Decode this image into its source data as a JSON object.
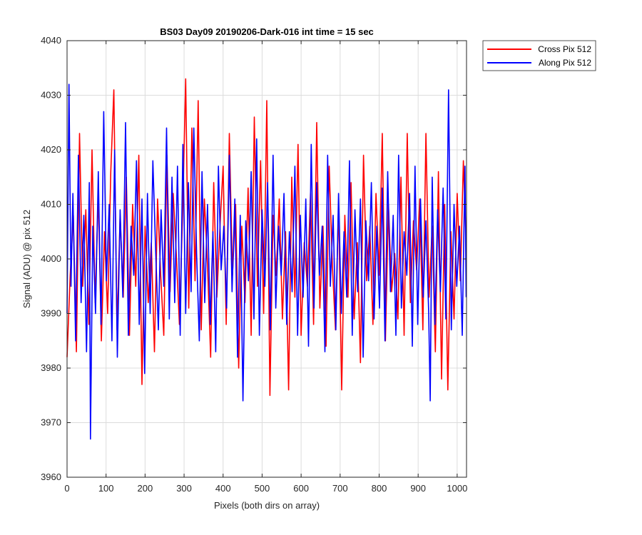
{
  "chart_data": {
    "type": "line",
    "title": "BS03 Day09 20190206-Dark-016 int time = 15 sec",
    "xlabel": "Pixels (both dirs on array)",
    "ylabel": "Signal (ADU) @ pix 512",
    "xlim": [
      0,
      1024
    ],
    "ylim": [
      3960,
      4040
    ],
    "xticks": [
      0,
      100,
      200,
      300,
      400,
      500,
      600,
      700,
      800,
      900,
      1000
    ],
    "yticks": [
      3960,
      3970,
      3980,
      3990,
      4000,
      4010,
      4020,
      4030,
      4040
    ],
    "grid": true,
    "legend_position": "outside-top-right",
    "series": [
      {
        "name": "Cross Pix 512",
        "color": "#ff0000",
        "x": [
          0,
          8,
          16,
          24,
          32,
          40,
          48,
          56,
          64,
          72,
          80,
          88,
          96,
          104,
          112,
          120,
          128,
          136,
          144,
          152,
          160,
          168,
          176,
          184,
          192,
          200,
          208,
          216,
          224,
          232,
          240,
          248,
          256,
          264,
          272,
          280,
          288,
          296,
          304,
          312,
          320,
          328,
          336,
          344,
          352,
          360,
          368,
          376,
          384,
          392,
          400,
          408,
          416,
          424,
          432,
          440,
          448,
          456,
          464,
          472,
          480,
          488,
          496,
          504,
          512,
          520,
          528,
          536,
          544,
          552,
          560,
          568,
          576,
          584,
          592,
          600,
          608,
          616,
          624,
          632,
          640,
          648,
          656,
          664,
          672,
          680,
          688,
          696,
          704,
          712,
          720,
          728,
          736,
          744,
          752,
          760,
          768,
          776,
          784,
          792,
          800,
          808,
          816,
          824,
          832,
          840,
          848,
          856,
          864,
          872,
          880,
          888,
          896,
          904,
          912,
          920,
          928,
          936,
          944,
          952,
          960,
          968,
          976,
          984,
          992,
          1000,
          1008,
          1016,
          1023
        ],
        "y": [
          3982,
          3997,
          4008,
          3983,
          4023,
          3995,
          4009,
          3988,
          4020,
          3992,
          4012,
          3985,
          4005,
          3990,
          4016,
          4031,
          3987,
          4008,
          3993,
          4015,
          3986,
          4010,
          3995,
          4019,
          3977,
          4006,
          3992,
          4003,
          3983,
          4011,
          3997,
          3986,
          4019,
          3994,
          4012,
          4001,
          3988,
          4008,
          4033,
          3991,
          4024,
          3996,
          4029,
          3987,
          4011,
          3999,
          3982,
          4014,
          3993,
          4006,
          4017,
          3988,
          4023,
          3997,
          4010,
          3980,
          4006,
          3992,
          4013,
          3986,
          4026,
          3995,
          4018,
          3990,
          4029,
          3975,
          4008,
          3997,
          4011,
          3989,
          4005,
          3976,
          4015,
          3993,
          4021,
          3986,
          4003,
          3995,
          4012,
          3988,
          4025,
          3991,
          4006,
          3984,
          4017,
          3999,
          3987,
          4010,
          3976,
          4008,
          3993,
          4014,
          3989,
          4003,
          3981,
          4019,
          3996,
          4006,
          3988,
          4012,
          3997,
          4023,
          3985,
          4010,
          3994,
          4001,
          3989,
          4015,
          3986,
          4023,
          3992,
          4007,
          3998,
          4011,
          3987,
          4023,
          3993,
          4006,
          3983,
          4016,
          3978,
          4010,
          3976,
          4005,
          3989,
          4012,
          3996,
          4018,
          4003
        ]
      },
      {
        "name": "Along Pix 512",
        "color": "#0000ff",
        "x": [
          0,
          5,
          10,
          15,
          22,
          29,
          36,
          43,
          50,
          57,
          60,
          66,
          73,
          80,
          87,
          94,
          101,
          108,
          115,
          122,
          129,
          136,
          143,
          150,
          157,
          164,
          171,
          178,
          185,
          192,
          199,
          206,
          213,
          220,
          227,
          234,
          241,
          248,
          255,
          262,
          269,
          276,
          283,
          290,
          297,
          304,
          311,
          318,
          325,
          332,
          339,
          346,
          353,
          360,
          367,
          374,
          381,
          388,
          395,
          402,
          409,
          416,
          423,
          430,
          437,
          444,
          451,
          458,
          465,
          472,
          479,
          486,
          493,
          500,
          507,
          514,
          521,
          528,
          535,
          542,
          549,
          556,
          563,
          570,
          577,
          584,
          591,
          598,
          605,
          612,
          619,
          626,
          633,
          640,
          647,
          654,
          661,
          668,
          675,
          682,
          689,
          696,
          703,
          710,
          717,
          724,
          731,
          738,
          745,
          752,
          759,
          766,
          773,
          780,
          787,
          794,
          801,
          808,
          815,
          822,
          829,
          836,
          843,
          850,
          857,
          864,
          871,
          878,
          885,
          892,
          899,
          906,
          913,
          920,
          927,
          931,
          936,
          943,
          950,
          957,
          964,
          971,
          978,
          985,
          992,
          999,
          1006,
          1013,
          1020,
          1023
        ],
        "y": [
          3990,
          4032,
          3995,
          4012,
          3985,
          4019,
          3992,
          4008,
          3983,
          4014,
          3967,
          4006,
          3990,
          4016,
          3988,
          4027,
          3996,
          4010,
          3985,
          4020,
          3982,
          4009,
          3993,
          4025,
          3986,
          4006,
          3997,
          4018,
          3988,
          4011,
          3979,
          4012,
          3990,
          4018,
          4002,
          3987,
          4009,
          3995,
          4024,
          3989,
          4015,
          3992,
          4017,
          3986,
          4021,
          3990,
          4014,
          3994,
          4024,
          4001,
          3985,
          4016,
          3992,
          4010,
          3988,
          4005,
          3983,
          4017,
          3998,
          4006,
          3991,
          4019,
          3994,
          4011,
          3982,
          4008,
          3974,
          4007,
          3996,
          4016,
          3989,
          4022,
          3986,
          4009,
          3995,
          4014,
          3987,
          4019,
          3991,
          4006,
          3997,
          4012,
          3988,
          4005,
          3994,
          4017,
          3986,
          4008,
          3993,
          4011,
          3984,
          4021,
          3991,
          4014,
          3997,
          4006,
          3983,
          4019,
          3995,
          4008,
          3987,
          4012,
          3990,
          4005,
          3993,
          4018,
          3986,
          4009,
          3994,
          4011,
          3982,
          4007,
          3996,
          4014,
          3989,
          4006,
          3991,
          4013,
          3985,
          4016,
          3994,
          4008,
          3986,
          4019,
          3991,
          4005,
          3997,
          4012,
          3984,
          4017,
          3988,
          4011,
          3993,
          4007,
          3990,
          3974,
          4015,
          3988,
          4009,
          3994,
          4013,
          3989,
          4031,
          3987,
          4010,
          3995,
          4006,
          3986,
          4017,
          3993
        ]
      }
    ]
  }
}
